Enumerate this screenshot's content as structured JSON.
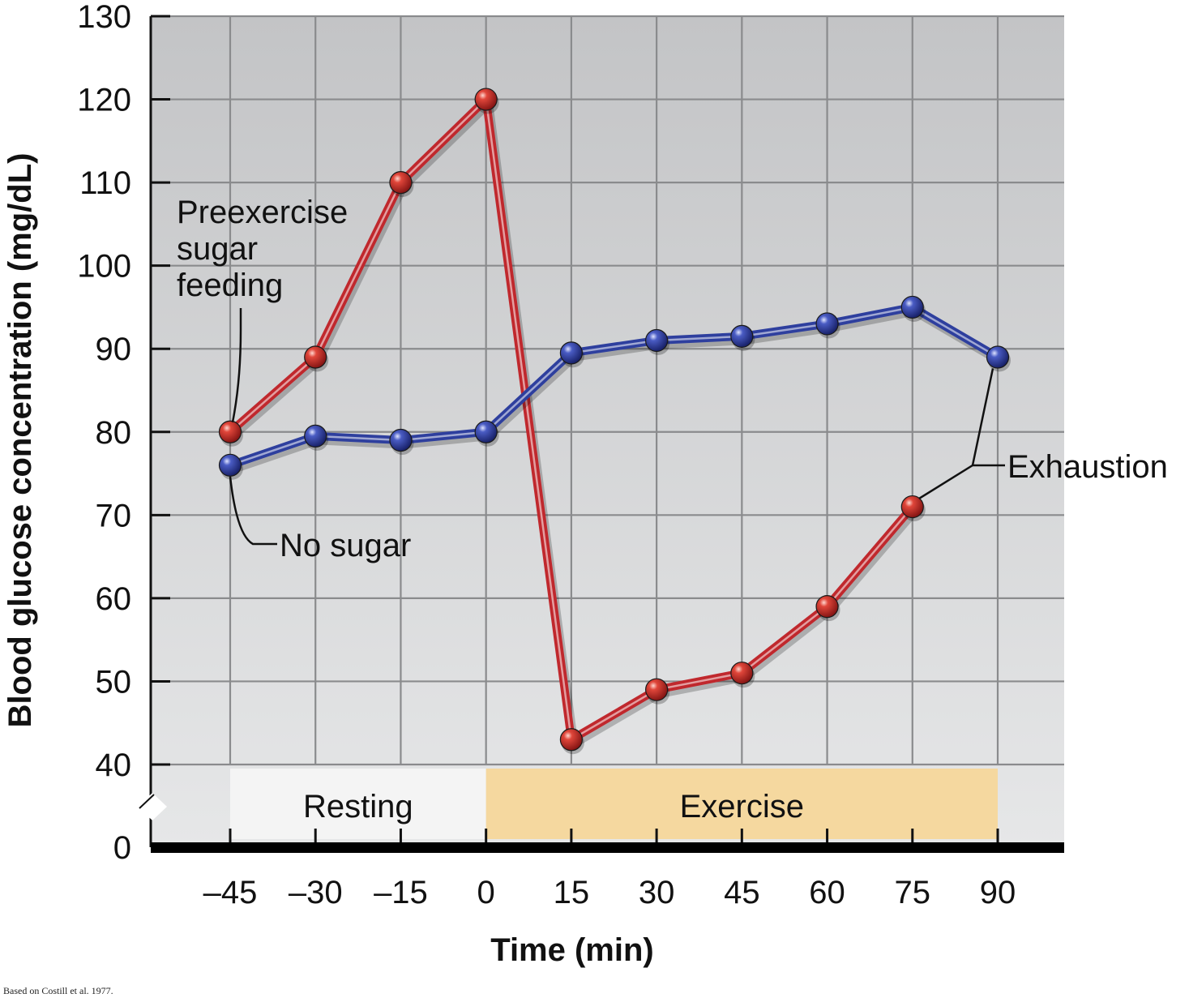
{
  "chart_data": {
    "type": "line",
    "x": [
      -45,
      -30,
      -15,
      0,
      15,
      30,
      45,
      60,
      75,
      90
    ],
    "x_tick_labels": [
      "–45",
      "–30",
      "–15",
      "0",
      "15",
      "30",
      "45",
      "60",
      "75",
      "90"
    ],
    "y_ticks": [
      0,
      40,
      50,
      60,
      70,
      80,
      90,
      100,
      110,
      120,
      130
    ],
    "ylim": [
      0,
      130
    ],
    "y_axis_break": [
      0,
      40
    ],
    "xlabel": "Time (min)",
    "ylabel": "Blood glucose concentration (mg/dL)",
    "grid": true,
    "series": [
      {
        "key": "preexercise",
        "color": "#c0282d",
        "x": [
          -45,
          -30,
          -15,
          0,
          15,
          30,
          45,
          60,
          75
        ],
        "values": [
          80,
          89,
          110,
          120,
          43,
          49,
          51,
          59,
          71
        ]
      },
      {
        "key": "no_sugar",
        "color": "#2e3f9e",
        "x": [
          -45,
          -30,
          -15,
          0,
          15,
          30,
          45,
          60,
          75,
          90
        ],
        "values": [
          76,
          79.5,
          79,
          80,
          89.5,
          91,
          91.5,
          93,
          95,
          89
        ]
      }
    ],
    "annotations": {
      "preexercise_lines": [
        "Preexercise",
        "sugar",
        "feeding"
      ],
      "no_sugar": "No sugar",
      "exhaustion": "Exhaustion"
    },
    "phases": [
      {
        "label": "Resting",
        "from": -45,
        "to": 0,
        "color": "#f4f4f4"
      },
      {
        "label": "Exercise",
        "from": 0,
        "to": 90,
        "color": "#f5d89f"
      }
    ],
    "source_note": "Based on Costill et al. 1977."
  }
}
